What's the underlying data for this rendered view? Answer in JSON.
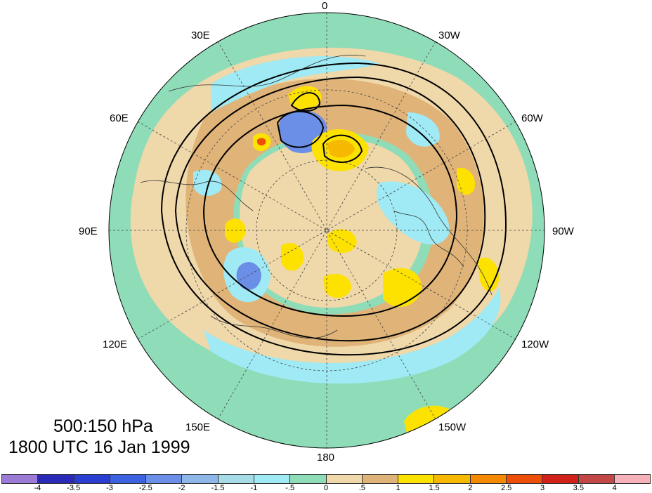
{
  "map": {
    "projection": "polar stereographic (north pole)",
    "variable_levels": "500:150 hPa",
    "longitude_labels": [
      {
        "key": "lon-0",
        "text": "0"
      },
      {
        "key": "lon-30w",
        "text": "30W"
      },
      {
        "key": "lon-60w",
        "text": "60W"
      },
      {
        "key": "lon-90w",
        "text": "90W"
      },
      {
        "key": "lon-120w",
        "text": "120W"
      },
      {
        "key": "lon-150w",
        "text": "150W"
      },
      {
        "key": "lon-180",
        "text": "180"
      },
      {
        "key": "lon-150e",
        "text": "150E"
      },
      {
        "key": "lon-120e",
        "text": "120E"
      },
      {
        "key": "lon-90e",
        "text": "90E"
      },
      {
        "key": "lon-60e",
        "text": "60E"
      },
      {
        "key": "lon-30e",
        "text": "30E"
      }
    ]
  },
  "title": {
    "line1": "500:150 hPa",
    "line2": "1800 UTC 16 Jan 1999"
  },
  "colorbar": {
    "tick_labels": [
      "-4",
      "-3.5",
      "-3",
      "-2.5",
      "-2",
      "-1.5",
      "-1",
      "-.5",
      "0",
      ".5",
      "1",
      "1.5",
      "2",
      "2.5",
      "3",
      "3.5",
      "4"
    ],
    "colors": [
      "#9b7bd6",
      "#2a2ab8",
      "#2a3ed2",
      "#3b63e0",
      "#6b8ee6",
      "#8fb6e8",
      "#a6dce8",
      "#9feaf4",
      "#8fdcb8",
      "#efd8aa",
      "#e0b478",
      "#fde200",
      "#f6b800",
      "#f58a00",
      "#ee4f08",
      "#d02218",
      "#c24848",
      "#f7b1ba"
    ]
  },
  "legend_colors": {
    "green": "#8fdcb8",
    "tan": "#efd8aa",
    "brown": "#e0b478",
    "yellow": "#fde200",
    "orange": "#f6b800",
    "lightblue": "#9feaf4",
    "blue": "#6b8ee6"
  }
}
